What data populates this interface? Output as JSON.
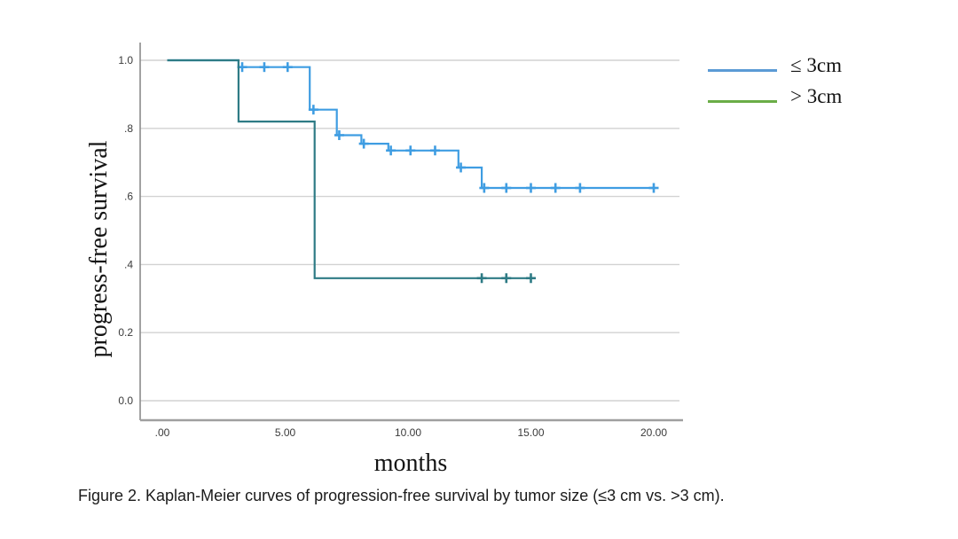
{
  "caption": "Figure 2. Kaplan-Meier curves of progression-free survival by tumor size (≤3 cm vs. >3 cm).",
  "chart_data": {
    "type": "line",
    "subtype": "kaplan-meier-step",
    "title": "",
    "xlabel": "months",
    "ylabel": "progress-free survival",
    "xlim": [
      -0.9,
      21.1
    ],
    "ylim": [
      0.0,
      1.06
    ],
    "grid": "horizontal-only",
    "x_ticks": {
      "values": [
        0,
        5,
        10,
        15,
        20
      ],
      "labels": [
        ".00",
        "5.00",
        "10.00",
        "15.00",
        "20.00"
      ]
    },
    "y_ticks": {
      "values": [
        0.0,
        0.2,
        0.4,
        0.6,
        0.8,
        1.0
      ],
      "labels": [
        "0.0",
        "0.2",
        ".4",
        ".6",
        ".8",
        "1.0"
      ]
    },
    "colors": {
      "grid": "#d2d2d2",
      "y_axis": "#8a8a8a",
      "x_axis": "#9f9f9f",
      "tick_text": "#3a3a3a"
    },
    "legend": {
      "position": "top-right",
      "entries": [
        {
          "label": "≤ 3cm",
          "color": "#5b9bd5"
        },
        {
          "label": "> 3cm",
          "color": "#6aad47"
        }
      ]
    },
    "series": [
      {
        "name": "le-3cm",
        "label": "≤ 3cm",
        "plot_color": "#3f9de2",
        "steps": [
          [
            0.2,
            1.0
          ],
          [
            3.1,
            1.0
          ],
          [
            3.1,
            0.98
          ],
          [
            6.0,
            0.98
          ],
          [
            6.0,
            0.855
          ],
          [
            7.1,
            0.855
          ],
          [
            7.1,
            0.78
          ],
          [
            8.1,
            0.78
          ],
          [
            8.1,
            0.755
          ],
          [
            9.2,
            0.755
          ],
          [
            9.2,
            0.735
          ],
          [
            12.05,
            0.735
          ],
          [
            12.05,
            0.685
          ],
          [
            13.0,
            0.685
          ],
          [
            13.0,
            0.625
          ],
          [
            20.0,
            0.625
          ]
        ],
        "censors": [
          [
            3.25,
            0.98
          ],
          [
            4.15,
            0.98
          ],
          [
            5.1,
            0.98
          ],
          [
            6.15,
            0.855
          ],
          [
            7.2,
            0.78
          ],
          [
            8.2,
            0.755
          ],
          [
            9.3,
            0.735
          ],
          [
            10.1,
            0.735
          ],
          [
            11.1,
            0.735
          ],
          [
            12.15,
            0.685
          ],
          [
            13.1,
            0.625
          ],
          [
            14.0,
            0.625
          ],
          [
            15.0,
            0.625
          ],
          [
            16.0,
            0.625
          ],
          [
            17.0,
            0.625
          ],
          [
            20.0,
            0.625
          ]
        ]
      },
      {
        "name": "gt-3cm",
        "label": "> 3cm",
        "plot_color": "#2e7b85",
        "steps": [
          [
            0.2,
            1.0
          ],
          [
            3.1,
            1.0
          ],
          [
            3.1,
            0.82
          ],
          [
            6.2,
            0.82
          ],
          [
            6.2,
            0.36
          ],
          [
            15.15,
            0.36
          ]
        ],
        "censors": [
          [
            13.0,
            0.36
          ],
          [
            14.0,
            0.36
          ],
          [
            15.0,
            0.36
          ]
        ]
      }
    ]
  }
}
